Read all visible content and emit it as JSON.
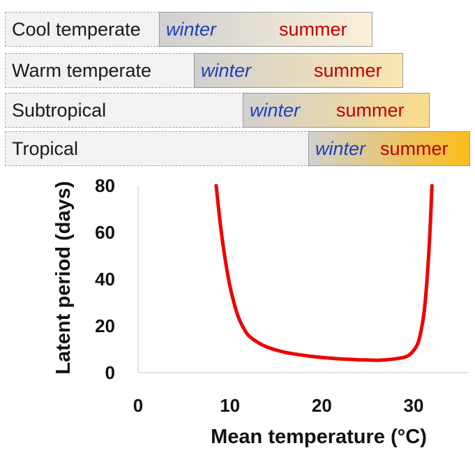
{
  "zones": [
    {
      "name": "Cool temperate",
      "winter": "winter",
      "summer": "summer"
    },
    {
      "name": "Warm temperate",
      "winter": "winter",
      "summer": "summer"
    },
    {
      "name": "Subtropical",
      "winter": "winter",
      "summer": "summer"
    },
    {
      "name": "Tropical",
      "winter": "winter",
      "summer": "summer"
    }
  ],
  "colors": {
    "curve": "#ee0000",
    "winter_text": "#1f3fb8",
    "summer_text": "#c00000",
    "gradient_cool": "#d0d0d0",
    "gradient_warm": [
      "#fbf0d8",
      "#fbe6b0",
      "#fbdc8a",
      "#fbbd18"
    ]
  },
  "chart_data": {
    "type": "line",
    "xlabel": "Mean temperature (°C)",
    "ylabel": "Latent period (days)",
    "xlim": [
      0,
      36
    ],
    "ylim": [
      0,
      80
    ],
    "xticks": [
      "0",
      "10",
      "20",
      "30"
    ],
    "yticks": [
      "0",
      "20",
      "40",
      "60",
      "80"
    ],
    "grid": false,
    "series": [
      {
        "x": [
          8.5,
          9,
          9.5,
          10,
          10.5,
          11,
          11.5,
          12,
          13,
          14,
          15,
          16,
          17,
          18,
          19,
          20,
          21,
          22,
          23,
          24,
          25,
          26,
          27,
          28,
          29,
          29.5,
          30,
          30.5,
          31,
          31.3,
          31.6,
          31.8,
          32
        ],
        "y": [
          80,
          62,
          48,
          37,
          29,
          23,
          19,
          16,
          13,
          11,
          9.7,
          8.7,
          8,
          7.4,
          6.9,
          6.5,
          6.2,
          5.9,
          5.7,
          5.5,
          5.4,
          5.3,
          5.5,
          5.9,
          6.6,
          7.5,
          9.5,
          13,
          22,
          32,
          48,
          62,
          80
        ]
      }
    ]
  }
}
